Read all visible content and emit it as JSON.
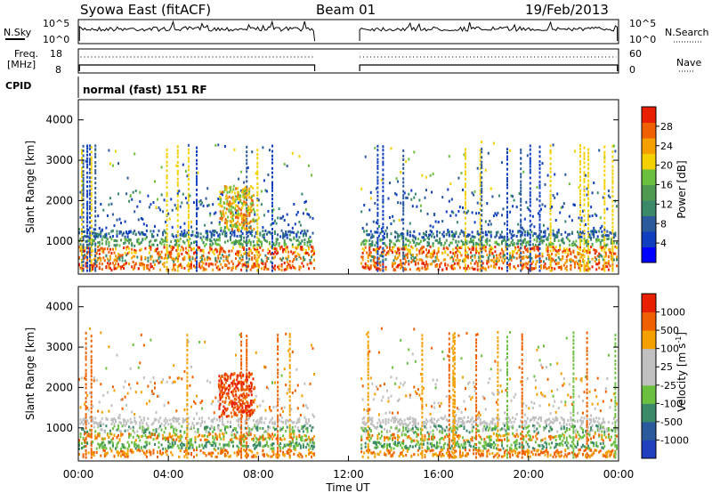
{
  "header": {
    "radar": "Syowa East (fitACF)",
    "beam": "Beam 01",
    "date": "19/Feb/2013"
  },
  "params": {
    "nsky_label": "N.Sky",
    "nsky_ticks": [
      "10^5",
      "10^0"
    ],
    "nsearch_label": "N.Search",
    "nsearch_ticks": [
      "10^5",
      "10^0"
    ],
    "freq_label": "Freq.",
    "freq_unit": "[MHz]",
    "freq_ticks": [
      "18",
      "8"
    ],
    "nave_label": "Nave",
    "nave_ticks": [
      "60",
      "0"
    ],
    "cpid_label": "CPID",
    "cpid_value": "normal (fast) 151 RF"
  },
  "colors": {
    "power_scale": [
      "#0000ff",
      "#1040c0",
      "#2a5a9c",
      "#3a8a6a",
      "#4f9a50",
      "#6cc040",
      "#f4d000",
      "#f4a000",
      "#f06000",
      "#e82000"
    ],
    "velocity_scale": [
      "#2040c0",
      "#2a5a9c",
      "#3a8a6a",
      "#6cc040",
      "#c0c0c0",
      "#c0c0c0",
      "#f4a000",
      "#f06000",
      "#e82000"
    ]
  },
  "chart_data": [
    {
      "type": "heatmap",
      "name": "power",
      "ylabel": "Slant Range [km]",
      "yticks": [
        "4000",
        "3000",
        "2000",
        "1000"
      ],
      "ylim": [
        180,
        4500
      ],
      "colorbar_label": "Power [dB]",
      "colorbar_ticks": [
        "28",
        "24",
        "20",
        "16",
        "12",
        "8",
        "4"
      ],
      "colorbar_range": [
        0,
        30
      ],
      "data_gap_ut": [
        10.5,
        12.5
      ]
    },
    {
      "type": "heatmap",
      "name": "velocity",
      "ylabel": "Slant Range [km]",
      "yticks": [
        "4000",
        "3000",
        "2000",
        "1000"
      ],
      "ylim": [
        180,
        4500
      ],
      "xlabel": "Time UT",
      "xticks": [
        "00:00",
        "04:00",
        "08:00",
        "12:00",
        "16:00",
        "20:00",
        "00:00"
      ],
      "xlim_hours": [
        0,
        24
      ],
      "colorbar_label": "Velocity [m s",
      "colorbar_label_sup": "-1",
      "colorbar_label_end": "]",
      "colorbar_ticks": [
        "1000",
        "500",
        "100",
        "25",
        "-25",
        "-100",
        "-500",
        "-1000"
      ],
      "data_gap_ut": [
        10.5,
        12.5
      ]
    }
  ]
}
